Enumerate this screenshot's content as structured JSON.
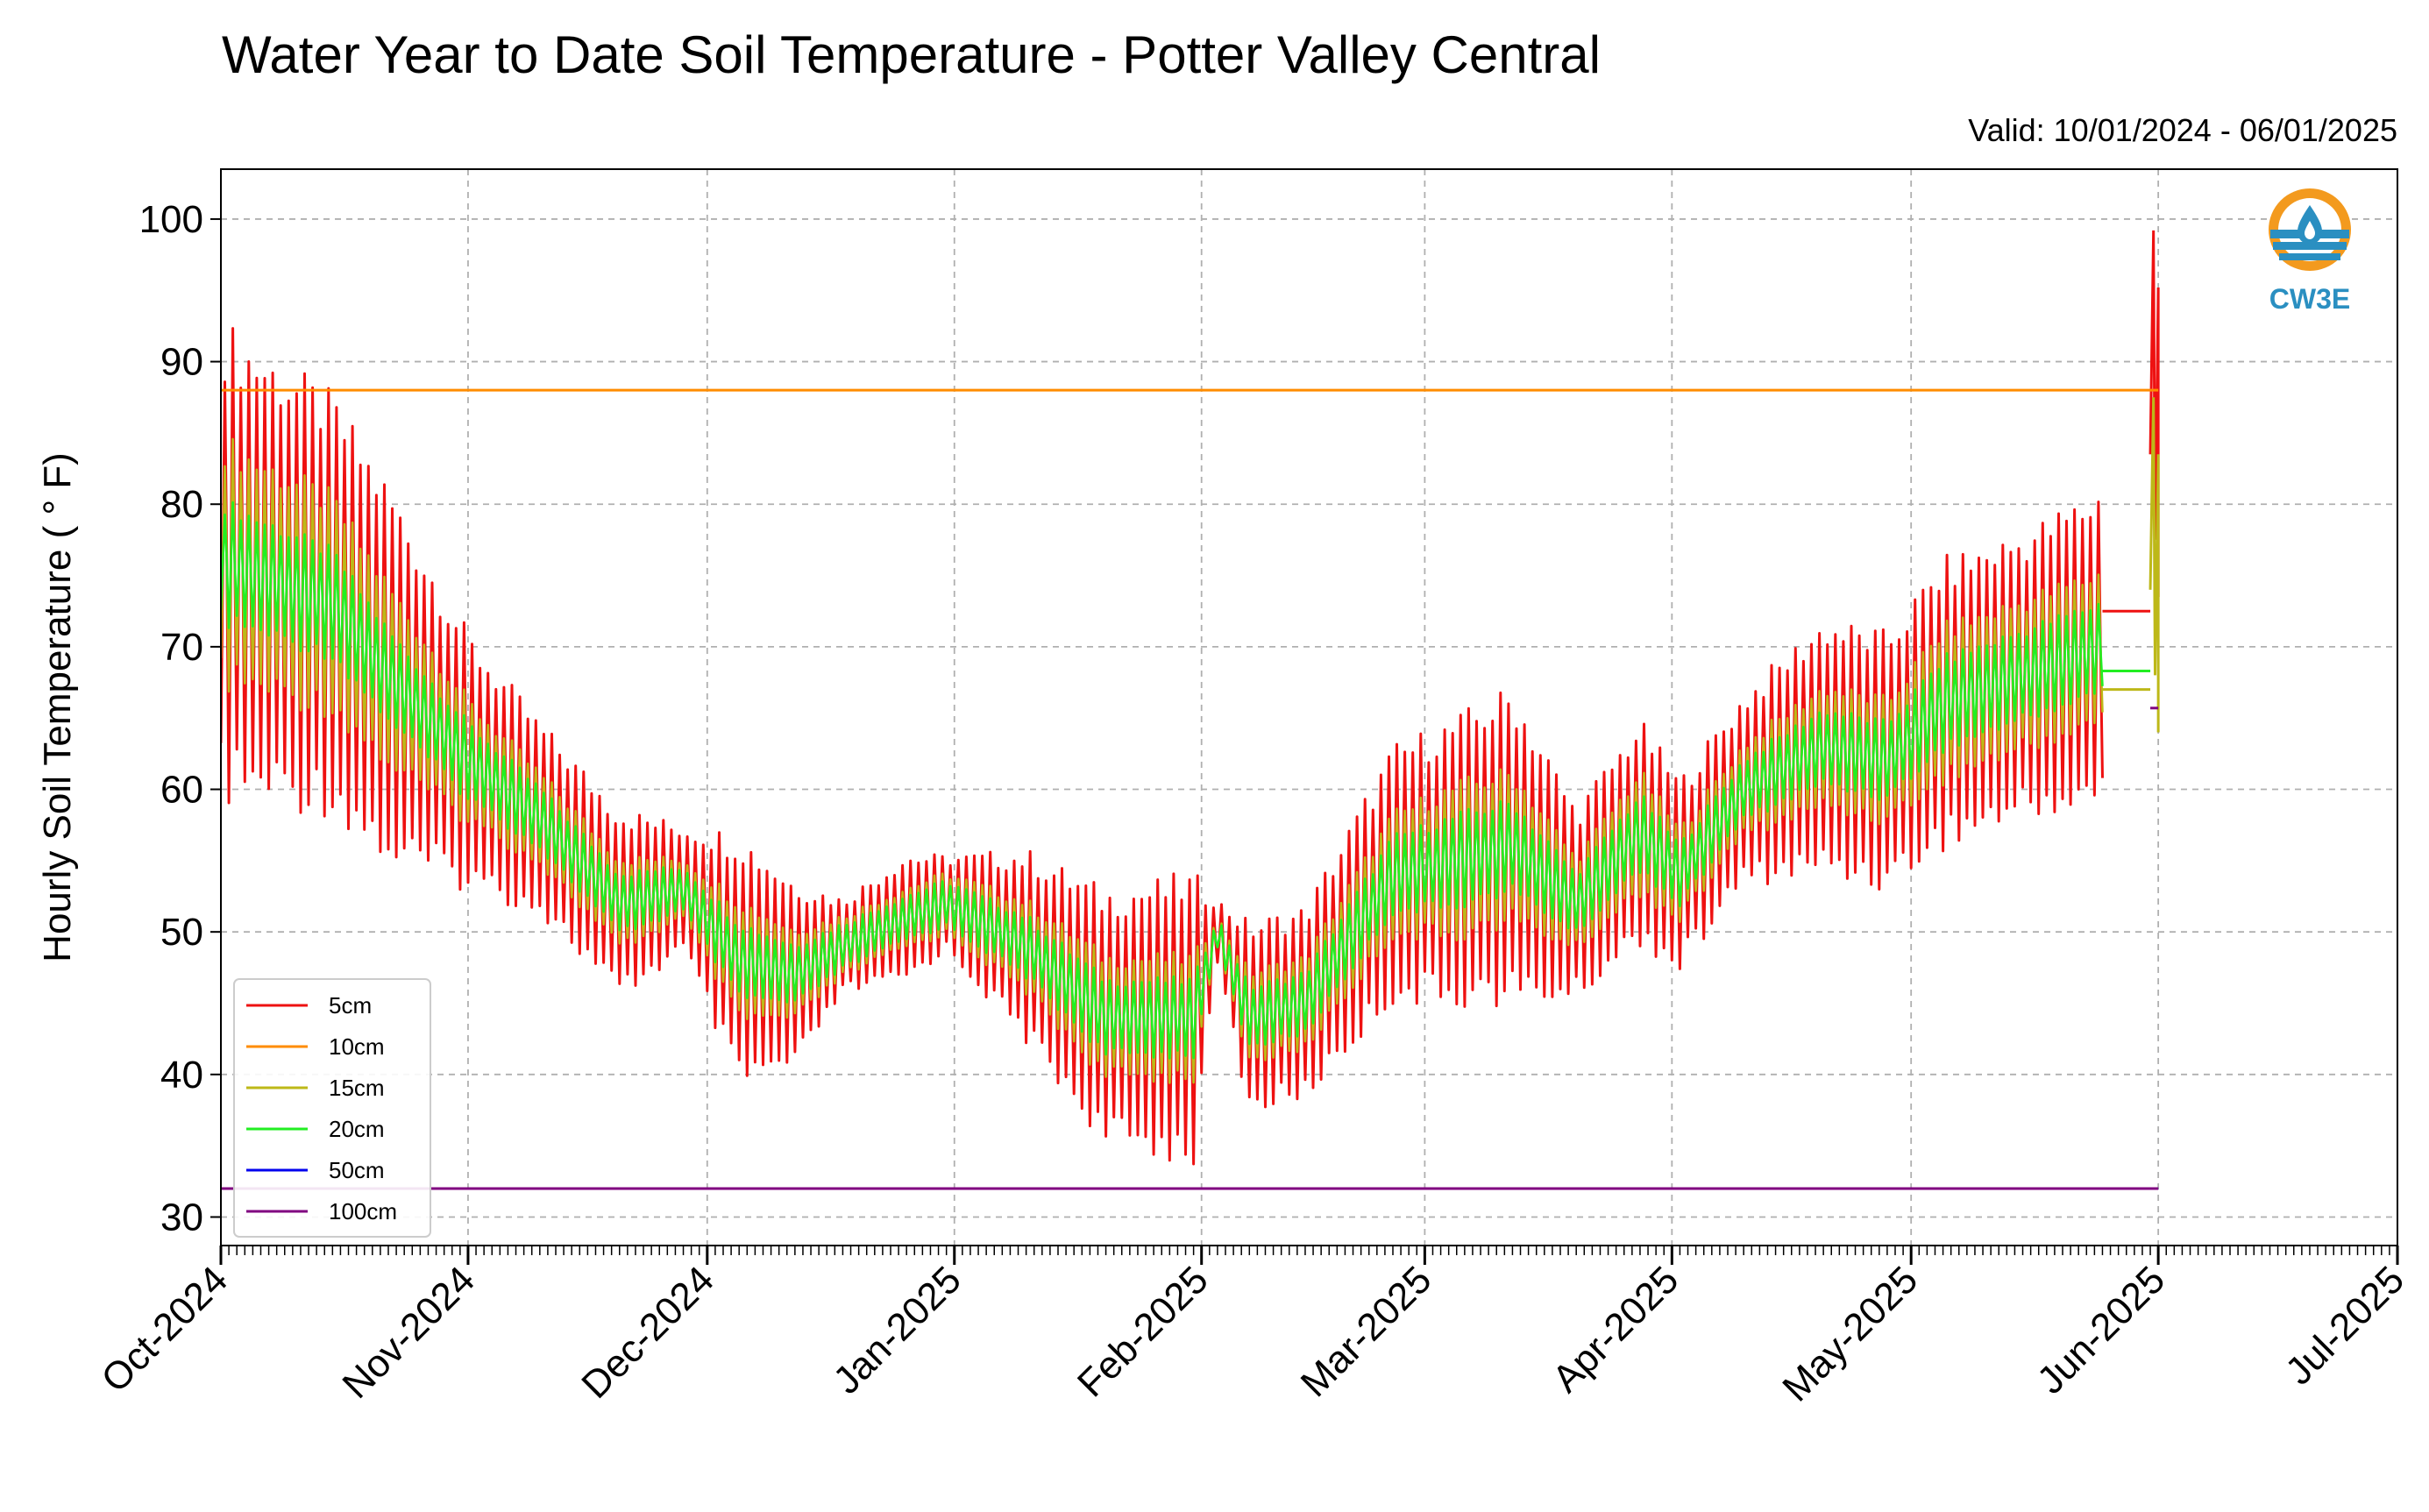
{
  "chart_data": {
    "type": "line",
    "title": "Water Year to Date Soil Temperature - Potter Valley Central",
    "subtitle": "Valid: 10/01/2024 - 06/01/2025",
    "ylabel": "Hourly Soil Temperature ( ° F)",
    "xlabel": "",
    "ylim": [
      28,
      103.5
    ],
    "yticks": [
      30,
      40,
      50,
      60,
      70,
      80,
      90,
      100
    ],
    "xlim": [
      "2024-10-01",
      "2025-07-01"
    ],
    "xticks": [
      "2024-10-01",
      "2024-11-01",
      "2024-12-01",
      "2025-01-01",
      "2025-02-01",
      "2025-03-01",
      "2025-04-01",
      "2025-05-01",
      "2025-06-01",
      "2025-07-01"
    ],
    "xtick_labels": [
      "Oct-2024",
      "Nov-2024",
      "Dec-2024",
      "Jan-2025",
      "Feb-2025",
      "Mar-2025",
      "Apr-2025",
      "May-2025",
      "Jun-2025",
      "Jul-2025"
    ],
    "grid": true,
    "legend_position": "lower-left",
    "series": [
      {
        "name": "5cm",
        "color": "#ee1111",
        "daily_mean": [
          [
            "2024-10-01",
            76
          ],
          [
            "2024-10-15",
            73
          ],
          [
            "2024-10-22",
            68
          ],
          [
            "2024-11-01",
            62
          ],
          [
            "2024-11-10",
            58
          ],
          [
            "2024-11-20",
            52
          ],
          [
            "2024-11-28",
            53
          ],
          [
            "2024-12-05",
            48
          ],
          [
            "2024-12-12",
            47
          ],
          [
            "2024-12-18",
            49
          ],
          [
            "2024-12-26",
            51
          ],
          [
            "2024-12-31",
            52
          ],
          [
            "2025-01-10",
            49
          ],
          [
            "2025-01-20",
            44
          ],
          [
            "2025-01-31",
            44
          ],
          [
            "2025-02-03",
            50
          ],
          [
            "2025-02-07",
            44
          ],
          [
            "2025-02-14",
            45
          ],
          [
            "2025-02-25",
            54
          ],
          [
            "2025-03-05",
            55
          ],
          [
            "2025-03-12",
            56
          ],
          [
            "2025-03-20",
            52
          ],
          [
            "2025-03-28",
            57
          ],
          [
            "2025-04-02",
            54
          ],
          [
            "2025-04-10",
            60
          ],
          [
            "2025-04-20",
            63
          ],
          [
            "2025-04-28",
            62
          ],
          [
            "2025-05-05",
            66
          ],
          [
            "2025-05-15",
            68
          ],
          [
            "2025-05-25",
            70
          ]
        ],
        "daily_amplitude": [
          [
            "2024-10-01",
            15
          ],
          [
            "2024-10-15",
            13
          ],
          [
            "2024-10-22",
            12
          ],
          [
            "2024-11-01",
            8
          ],
          [
            "2024-11-10",
            6
          ],
          [
            "2024-11-20",
            6
          ],
          [
            "2024-11-28",
            4
          ],
          [
            "2024-12-05",
            8
          ],
          [
            "2024-12-12",
            6
          ],
          [
            "2024-12-18",
            3
          ],
          [
            "2024-12-26",
            4
          ],
          [
            "2024-12-31",
            3
          ],
          [
            "2025-01-10",
            6
          ],
          [
            "2025-01-20",
            8
          ],
          [
            "2025-01-31",
            9
          ],
          [
            "2025-02-03",
            2
          ],
          [
            "2025-02-07",
            6
          ],
          [
            "2025-02-14",
            6
          ],
          [
            "2025-02-25",
            8
          ],
          [
            "2025-03-05",
            9
          ],
          [
            "2025-03-12",
            10
          ],
          [
            "2025-03-20",
            6
          ],
          [
            "2025-03-28",
            7
          ],
          [
            "2025-04-02",
            6
          ],
          [
            "2025-04-10",
            6
          ],
          [
            "2025-04-20",
            8
          ],
          [
            "2025-04-28",
            8
          ],
          [
            "2025-05-05",
            9
          ],
          [
            "2025-05-15",
            9
          ],
          [
            "2025-05-25",
            10
          ]
        ],
        "flat_segment": {
          "x": [
            "2025-05-25",
            "2025-05-31"
          ],
          "y": 72.5
        },
        "end_spike": {
          "x": [
            "2025-05-31",
            "2025-06-01"
          ],
          "y": [
            83.5,
            99.2
          ]
        }
      },
      {
        "name": "10cm",
        "color": "#ff8c00",
        "flat_segment": {
          "x": [
            "2024-10-01",
            "2025-06-01"
          ],
          "y": 88
        }
      },
      {
        "name": "15cm",
        "color": "#bdb818",
        "daily_mean": [
          [
            "2024-10-01",
            76
          ],
          [
            "2024-10-15",
            73
          ],
          [
            "2024-10-22",
            68
          ],
          [
            "2024-11-01",
            62
          ],
          [
            "2024-11-10",
            58
          ],
          [
            "2024-11-20",
            52
          ],
          [
            "2024-11-28",
            53
          ],
          [
            "2024-12-05",
            48
          ],
          [
            "2024-12-12",
            47
          ],
          [
            "2024-12-18",
            49
          ],
          [
            "2024-12-26",
            51
          ],
          [
            "2024-12-31",
            52
          ],
          [
            "2025-01-10",
            49
          ],
          [
            "2025-01-20",
            44
          ],
          [
            "2025-01-31",
            44
          ],
          [
            "2025-02-03",
            50
          ],
          [
            "2025-02-07",
            44
          ],
          [
            "2025-02-14",
            45
          ],
          [
            "2025-02-25",
            54
          ],
          [
            "2025-03-05",
            55
          ],
          [
            "2025-03-12",
            56
          ],
          [
            "2025-03-20",
            52
          ],
          [
            "2025-03-28",
            57
          ],
          [
            "2025-04-02",
            54
          ],
          [
            "2025-04-10",
            60
          ],
          [
            "2025-04-20",
            63
          ],
          [
            "2025-04-28",
            62
          ],
          [
            "2025-05-05",
            66
          ],
          [
            "2025-05-15",
            68
          ],
          [
            "2025-05-25",
            70
          ]
        ],
        "daily_amplitude": [
          [
            "2024-10-01",
            8
          ],
          [
            "2024-10-15",
            7
          ],
          [
            "2024-10-22",
            6
          ],
          [
            "2024-11-01",
            4
          ],
          [
            "2024-11-10",
            3
          ],
          [
            "2024-11-20",
            3
          ],
          [
            "2024-11-28",
            2
          ],
          [
            "2024-12-05",
            4
          ],
          [
            "2024-12-12",
            3
          ],
          [
            "2024-12-18",
            2
          ],
          [
            "2024-12-26",
            2
          ],
          [
            "2024-12-31",
            2
          ],
          [
            "2025-01-10",
            3
          ],
          [
            "2025-01-20",
            4
          ],
          [
            "2025-01-31",
            4
          ],
          [
            "2025-02-03",
            1
          ],
          [
            "2025-02-07",
            3
          ],
          [
            "2025-02-14",
            3
          ],
          [
            "2025-02-25",
            4
          ],
          [
            "2025-03-05",
            5
          ],
          [
            "2025-03-12",
            5
          ],
          [
            "2025-03-20",
            3
          ],
          [
            "2025-03-28",
            4
          ],
          [
            "2025-04-02",
            3
          ],
          [
            "2025-04-10",
            3
          ],
          [
            "2025-04-20",
            4
          ],
          [
            "2025-04-28",
            4
          ],
          [
            "2025-05-05",
            5
          ],
          [
            "2025-05-15",
            5
          ],
          [
            "2025-05-25",
            5
          ]
        ],
        "flat_segment": {
          "x": [
            "2025-05-25",
            "2025-05-31"
          ],
          "y": 67
        },
        "end_spike": {
          "x": [
            "2025-05-31",
            "2025-06-01"
          ],
          "y": [
            74,
            87.5
          ]
        }
      },
      {
        "name": "20cm",
        "color": "#22ee22",
        "daily_mean": [
          [
            "2024-10-01",
            76
          ],
          [
            "2024-10-15",
            73
          ],
          [
            "2024-10-22",
            68
          ],
          [
            "2024-11-01",
            62
          ],
          [
            "2024-11-10",
            58
          ],
          [
            "2024-11-20",
            52
          ],
          [
            "2024-11-28",
            53
          ],
          [
            "2024-12-05",
            48
          ],
          [
            "2024-12-12",
            47
          ],
          [
            "2024-12-18",
            49
          ],
          [
            "2024-12-26",
            51
          ],
          [
            "2024-12-31",
            52
          ],
          [
            "2025-01-10",
            49
          ],
          [
            "2025-01-20",
            44
          ],
          [
            "2025-01-31",
            44
          ],
          [
            "2025-02-03",
            50
          ],
          [
            "2025-02-07",
            44
          ],
          [
            "2025-02-14",
            45
          ],
          [
            "2025-02-25",
            54
          ],
          [
            "2025-03-05",
            55
          ],
          [
            "2025-03-12",
            56
          ],
          [
            "2025-03-20",
            52
          ],
          [
            "2025-03-28",
            57
          ],
          [
            "2025-04-02",
            54
          ],
          [
            "2025-04-10",
            60
          ],
          [
            "2025-04-20",
            63
          ],
          [
            "2025-04-28",
            62
          ],
          [
            "2025-05-05",
            66
          ],
          [
            "2025-05-15",
            68
          ],
          [
            "2025-05-25",
            70
          ]
        ],
        "daily_amplitude": [
          [
            "2024-10-01",
            4
          ],
          [
            "2024-10-15",
            3.5
          ],
          [
            "2024-10-22",
            3
          ],
          [
            "2024-11-01",
            2.5
          ],
          [
            "2024-11-10",
            2
          ],
          [
            "2024-11-20",
            2
          ],
          [
            "2024-11-28",
            1.5
          ],
          [
            "2024-12-05",
            2.5
          ],
          [
            "2024-12-12",
            2
          ],
          [
            "2024-12-18",
            1.5
          ],
          [
            "2024-12-26",
            1.5
          ],
          [
            "2024-12-31",
            1.5
          ],
          [
            "2025-01-10",
            2
          ],
          [
            "2025-01-20",
            2.5
          ],
          [
            "2025-01-31",
            2.5
          ],
          [
            "2025-02-03",
            1
          ],
          [
            "2025-02-07",
            2
          ],
          [
            "2025-02-14",
            2
          ],
          [
            "2025-02-25",
            2.5
          ],
          [
            "2025-03-05",
            3
          ],
          [
            "2025-03-12",
            3
          ],
          [
            "2025-03-20",
            2
          ],
          [
            "2025-03-28",
            2.5
          ],
          [
            "2025-04-02",
            2
          ],
          [
            "2025-04-10",
            2
          ],
          [
            "2025-04-20",
            2.5
          ],
          [
            "2025-04-28",
            2.5
          ],
          [
            "2025-05-05",
            3
          ],
          [
            "2025-05-15",
            3
          ],
          [
            "2025-05-25",
            3
          ]
        ],
        "flat_segment": {
          "x": [
            "2025-05-25",
            "2025-05-31"
          ],
          "y": 68.3
        }
      },
      {
        "name": "50cm",
        "color": "#0000ee",
        "flat_segment": {
          "x": [
            "2024-10-01",
            "2025-06-01"
          ],
          "y": 32
        }
      },
      {
        "name": "100cm",
        "color": "#800080",
        "flat_segment": {
          "x": [
            "2024-10-01",
            "2025-06-01"
          ],
          "y": 32
        },
        "marker_segment": {
          "x": [
            "2025-05-31",
            "2025-06-01"
          ],
          "y": 65.7
        }
      }
    ]
  },
  "logo": {
    "text": "CW3E",
    "ring_color": "#f39a1e",
    "wave_color": "#2a8fc1",
    "drop_color": "#2a8fc1"
  }
}
